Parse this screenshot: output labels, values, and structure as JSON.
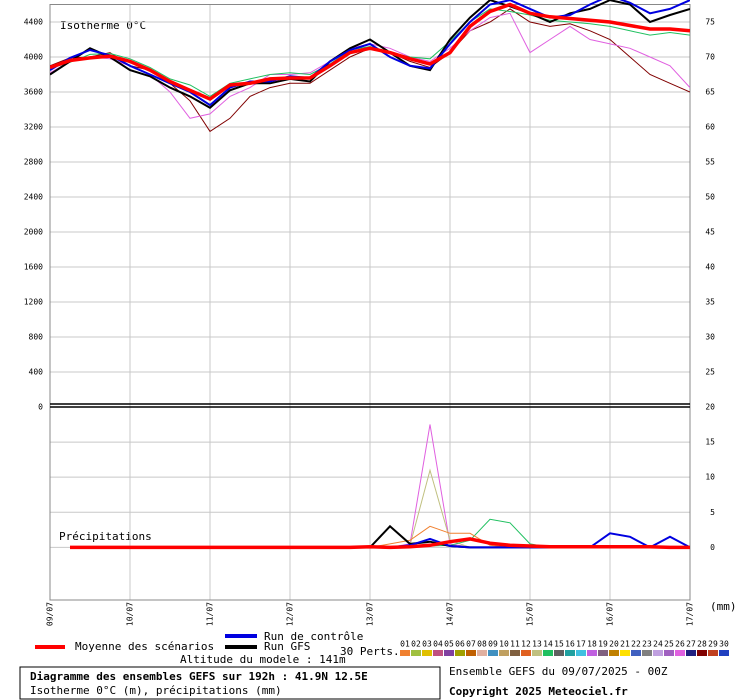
{
  "chart_data": [
    {
      "type": "line",
      "title": "Isotherme 0°C",
      "ylim": [
        0,
        4600
      ],
      "yticks": [
        0,
        400,
        800,
        1200,
        1600,
        2000,
        2400,
        2800,
        3200,
        3600,
        4000,
        4400
      ],
      "y2lim": [
        20,
        77.5
      ],
      "y2ticks": [
        25,
        30,
        35,
        40,
        45,
        50,
        55,
        60,
        65,
        70,
        75
      ],
      "grid": true,
      "series": [
        {
          "name": "28",
          "color": "#800000",
          "values": [
            3900,
            3990,
            4000,
            4050,
            3900,
            3850,
            3700,
            3500,
            3150,
            3300,
            3550,
            3650,
            3700,
            3700,
            3850,
            4000,
            4100,
            4050,
            3950,
            3880,
            4050,
            4300,
            4400,
            4550,
            4400,
            4350,
            4380,
            4300,
            4200,
            4000,
            3800,
            3700,
            3600
          ]
        },
        {
          "name": "26",
          "color": "#e060e0",
          "values": [
            3820,
            3950,
            4000,
            3980,
            3900,
            3800,
            3600,
            3300,
            3350,
            3550,
            3650,
            3800,
            3800,
            3820,
            3950,
            4100,
            4150,
            4100,
            4000,
            3950,
            4100,
            4300,
            4450,
            4500,
            4050,
            4200,
            4350,
            4200,
            4150,
            4100,
            4000,
            3900,
            3650
          ]
        },
        {
          "name": "14",
          "color": "#20c060",
          "values": [
            3870,
            3940,
            4030,
            4040,
            3980,
            3880,
            3750,
            3680,
            3550,
            3700,
            3750,
            3800,
            3820,
            3800,
            3920,
            4080,
            4120,
            4050,
            4000,
            3980,
            4180,
            4400,
            4550,
            4520,
            4480,
            4420,
            4400,
            4380,
            4350,
            4300,
            4250,
            4280,
            4250
          ]
        },
        {
          "name": "Run GFS",
          "color": "#000000",
          "values": [
            3800,
            3950,
            4100,
            4000,
            3850,
            3780,
            3650,
            3550,
            3420,
            3620,
            3700,
            3700,
            3750,
            3720,
            3950,
            4100,
            4200,
            4050,
            3900,
            3850,
            4200,
            4450,
            4650,
            4580,
            4500,
            4400,
            4500,
            4550,
            4650,
            4600,
            4400,
            4480,
            4550
          ]
        },
        {
          "name": "Run de contrôle",
          "color": "#0000e0",
          "values": [
            3850,
            3990,
            4080,
            4020,
            3900,
            3800,
            3700,
            3600,
            3450,
            3650,
            3720,
            3720,
            3780,
            3760,
            3950,
            4080,
            4150,
            4000,
            3900,
            3870,
            4150,
            4400,
            4600,
            4650,
            4550,
            4450,
            4480,
            4600,
            4700,
            4620,
            4500,
            4550,
            4650
          ]
        },
        {
          "name": "Moyenne des scénarios",
          "color": "#ff0000",
          "values": [
            3880,
            3960,
            3990,
            4010,
            3950,
            3850,
            3720,
            3620,
            3520,
            3680,
            3700,
            3750,
            3760,
            3760,
            3900,
            4050,
            4100,
            4050,
            3980,
            3920,
            4050,
            4350,
            4520,
            4600,
            4500,
            4460,
            4440,
            4420,
            4400,
            4360,
            4320,
            4320,
            4300
          ]
        }
      ]
    },
    {
      "type": "line",
      "title": "Précipitations",
      "y2label": "(mm)",
      "categories": [
        "09/07",
        null,
        null,
        null,
        "10/07",
        null,
        null,
        null,
        "11/07",
        null,
        null,
        null,
        "12/07",
        null,
        null,
        null,
        "13/07",
        null,
        null,
        null,
        "14/07",
        null,
        null,
        null,
        "15/07",
        null,
        null,
        null,
        "16/07",
        null,
        null,
        null,
        "17/07"
      ],
      "ylim": [
        -7.5,
        20
      ],
      "y2ticks": [
        0,
        5,
        10,
        15,
        20
      ],
      "grid": true,
      "series": [
        {
          "name": "26",
          "color": "#e060e0",
          "values": [
            null,
            0,
            0,
            0,
            0,
            0,
            0,
            0,
            0,
            0,
            0,
            0,
            0,
            0,
            0,
            0,
            0,
            0,
            0.5,
            17.5,
            0.5,
            0,
            0,
            0,
            0,
            0,
            0,
            0,
            0,
            0,
            0,
            0,
            0
          ]
        },
        {
          "name": "13",
          "color": "#c0c080",
          "values": [
            null,
            0,
            0,
            0,
            0,
            0,
            0,
            0,
            0,
            0,
            0,
            0,
            0,
            0,
            0,
            0,
            0,
            0,
            0.3,
            11,
            1,
            0,
            0,
            0,
            0,
            0,
            0,
            0,
            0,
            0,
            0,
            0,
            0
          ]
        },
        {
          "name": "14",
          "color": "#20c060",
          "values": [
            null,
            0,
            0,
            0,
            0,
            0,
            0,
            0,
            0,
            0,
            0,
            0,
            0,
            0,
            0,
            0,
            0,
            0,
            0,
            0.2,
            0.3,
            1,
            4,
            3.5,
            0.5,
            0,
            0,
            0,
            0,
            0,
            0,
            0,
            0
          ]
        },
        {
          "name": "01",
          "color": "#f08030",
          "values": [
            null,
            0,
            0,
            0,
            0,
            0,
            0,
            0,
            0,
            0,
            0,
            0,
            0,
            0,
            0,
            0,
            0,
            0.5,
            1,
            3,
            2,
            2,
            0.3,
            0,
            0,
            0,
            0,
            0,
            0,
            0,
            0,
            0,
            0
          ]
        },
        {
          "name": "Run GFS",
          "color": "#000000",
          "values": [
            null,
            0,
            0,
            0,
            0,
            0,
            0,
            0,
            0,
            0,
            0,
            0,
            0,
            0,
            0,
            0,
            0,
            3,
            0.5,
            0.8,
            0.2,
            0,
            0,
            0,
            0,
            0,
            0,
            0,
            0,
            0,
            0,
            0,
            0
          ]
        },
        {
          "name": "Run de contrôle",
          "color": "#0000e0",
          "values": [
            null,
            0,
            0,
            0,
            0,
            0,
            0,
            0,
            0,
            0,
            0,
            0,
            0,
            0,
            0,
            0,
            0,
            0,
            0.3,
            1.2,
            0.2,
            0,
            0,
            0,
            0,
            0,
            0,
            0,
            2,
            1.5,
            0,
            1.5,
            0
          ]
        },
        {
          "name": "Moyenne des scénarios",
          "color": "#ff0000",
          "values": [
            null,
            0,
            0,
            0,
            0,
            0,
            0,
            0,
            0,
            0,
            0,
            0,
            0,
            0,
            0,
            0,
            0.1,
            0,
            0.1,
            0.3,
            0.8,
            1.2,
            0.6,
            0.3,
            0.2,
            0.1,
            0.1,
            0.1,
            0.1,
            0.1,
            0.1,
            0,
            0
          ]
        }
      ]
    }
  ],
  "legend": {
    "mean": "Moyenne des scénarios",
    "control": "Run de contrôle",
    "gfs": "Run GFS",
    "perts_label": "30 Perts.",
    "altitude": "Altitude du modele : 141m",
    "perts": [
      {
        "name": "01",
        "color": "#f08030"
      },
      {
        "name": "02",
        "color": "#a0c040"
      },
      {
        "name": "03",
        "color": "#e0c000"
      },
      {
        "name": "04",
        "color": "#c05080"
      },
      {
        "name": "05",
        "color": "#8040a0"
      },
      {
        "name": "06",
        "color": "#a0a000"
      },
      {
        "name": "07",
        "color": "#c06000"
      },
      {
        "name": "08",
        "color": "#e0b0a0"
      },
      {
        "name": "09",
        "color": "#4090c0"
      },
      {
        "name": "10",
        "color": "#c0a060"
      },
      {
        "name": "11",
        "color": "#806040"
      },
      {
        "name": "12",
        "color": "#e06020"
      },
      {
        "name": "13",
        "color": "#c0c080"
      },
      {
        "name": "14",
        "color": "#20c060"
      },
      {
        "name": "15",
        "color": "#606060"
      },
      {
        "name": "16",
        "color": "#20a0a0"
      },
      {
        "name": "17",
        "color": "#40c0e0"
      },
      {
        "name": "18",
        "color": "#c060e0"
      },
      {
        "name": "19",
        "color": "#806080"
      },
      {
        "name": "20",
        "color": "#c08000"
      },
      {
        "name": "21",
        "color": "#ffe000"
      },
      {
        "name": "22",
        "color": "#4060c0"
      },
      {
        "name": "23",
        "color": "#808080"
      },
      {
        "name": "24",
        "color": "#c0a0e0"
      },
      {
        "name": "25",
        "color": "#a060c0"
      },
      {
        "name": "26",
        "color": "#e060e0"
      },
      {
        "name": "27",
        "color": "#202080"
      },
      {
        "name": "28",
        "color": "#800000"
      },
      {
        "name": "29",
        "color": "#c04020"
      },
      {
        "name": "30",
        "color": "#2040c0"
      }
    ]
  },
  "footer": {
    "title": "Diagramme des ensembles GEFS sur 192h : 41.9N 12.5E",
    "subtitle": "Isotherme 0°C (m), précipitations (mm)",
    "run": "Ensemble GEFS du 09/07/2025 - 00Z",
    "copyright": "Copyright 2025 Meteociel.fr"
  }
}
